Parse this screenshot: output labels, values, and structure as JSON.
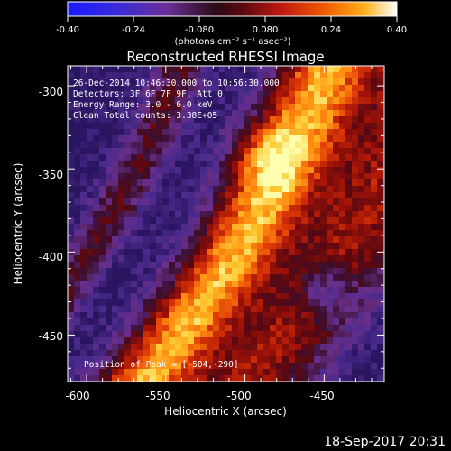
{
  "colorbar": {
    "tick_labels": [
      "-0.40",
      "-0.24",
      "-0.080",
      "0.080",
      "0.24",
      "0.40"
    ],
    "units_label": "(photons cm⁻² s⁻¹ asec⁻²)",
    "palette": [
      "#1a1aff",
      "#3a2ad8",
      "#6a2f9a",
      "#2a0a14",
      "#5a0810",
      "#c01a10",
      "#f05a00",
      "#ffaf1a",
      "#ffffff"
    ]
  },
  "plot": {
    "title": "Reconstructed RHESSI Image",
    "info_lines": [
      "26-Dec-2014 10:46:30.000 to 10:56:30.000",
      "Detectors: 3F 6F 7F 9F, Att 0",
      "Energy Range: 3.0 - 6.0 keV",
      "Clean    Total counts: 3.38E+05"
    ],
    "peak_text": "Position of Peak = [-504,-290]",
    "xlabel": "Heliocentric X (arcsec)",
    "ylabel": "Heliocentric Y (arcsec)",
    "x_tick_labels": [
      "-600",
      "-550",
      "-500",
      "-450"
    ],
    "y_tick_labels": [
      "-300",
      "-350",
      "-400",
      "-450"
    ],
    "x_range": [
      -612,
      -412
    ],
    "y_range": [
      -478,
      -288
    ]
  },
  "footer": {
    "timestamp": "18-Sep-2017 20:31"
  }
}
